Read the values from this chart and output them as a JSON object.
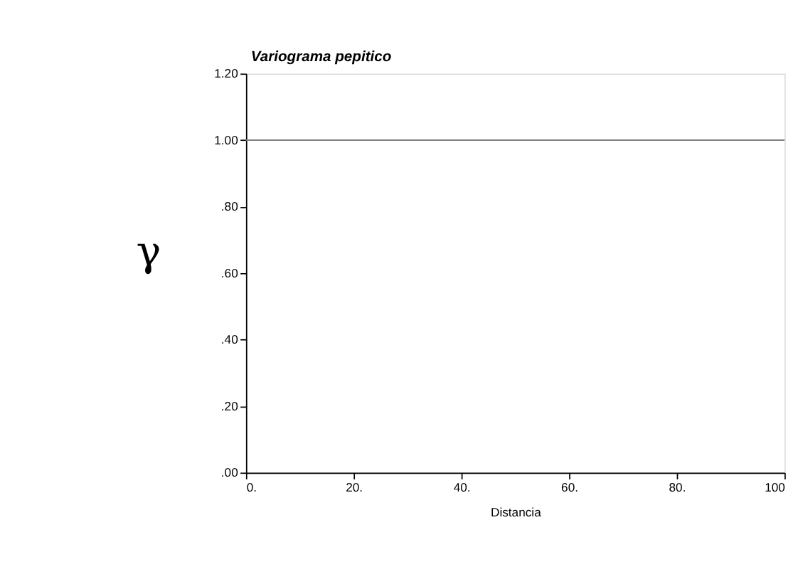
{
  "chart_data": {
    "type": "line",
    "title": "Variograma pepitico",
    "xlabel": "Distancia",
    "ylabel": "γ",
    "x": [
      0,
      100
    ],
    "series": [
      {
        "color": "#808080",
        "values": [
          1.0,
          1.0
        ]
      }
    ],
    "xlim": [
      0,
      100
    ],
    "ylim": [
      0,
      1.2
    ],
    "xticks": [
      {
        "value": 0,
        "label": "0."
      },
      {
        "value": 20,
        "label": "20."
      },
      {
        "value": 40,
        "label": "40."
      },
      {
        "value": 60,
        "label": "60."
      },
      {
        "value": 80,
        "label": "80."
      },
      100
    ],
    "yticks": [
      {
        "value": 0,
        "label": ".00"
      },
      {
        "value": 0.2,
        "label": ".20"
      },
      {
        "value": 0.4,
        "label": ".40"
      },
      {
        "value": 0.6,
        "label": ".60"
      },
      {
        "value": 0.8,
        "label": ".80"
      },
      {
        "value": 1.0,
        "label": "1.00"
      },
      {
        "value": 1.2,
        "label": "1.20"
      }
    ],
    "grid": false,
    "marker": "none",
    "line_style": "solid"
  }
}
